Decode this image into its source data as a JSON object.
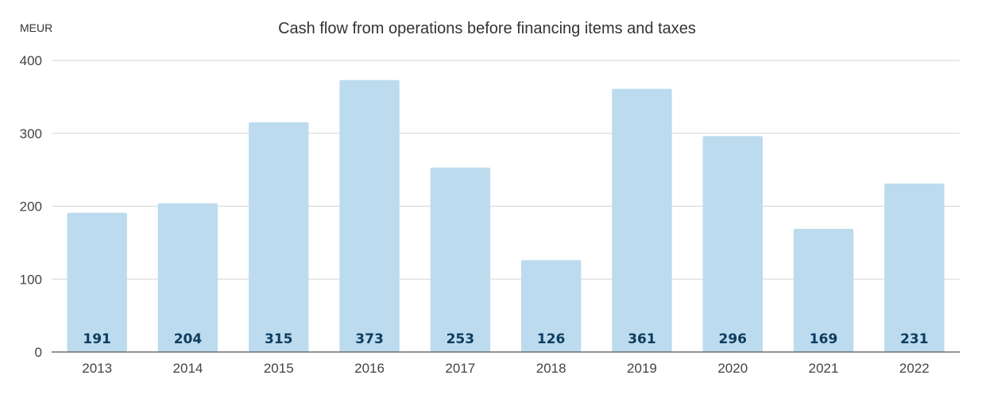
{
  "chart_data": {
    "type": "bar",
    "title": "Cash flow from operations before financing items and taxes",
    "unit": "MEUR",
    "xlabel": "",
    "ylabel": "",
    "categories": [
      "2013",
      "2014",
      "2015",
      "2016",
      "2017",
      "2018",
      "2019",
      "2020",
      "2021",
      "2022"
    ],
    "values": [
      191,
      204,
      315,
      373,
      253,
      126,
      361,
      296,
      169,
      231
    ],
    "ylim": [
      0,
      400
    ],
    "yticks": [
      0,
      100,
      200,
      300,
      400
    ],
    "grid": true,
    "legend": "none",
    "bar_color": "#bcdbee",
    "label_color": "#0d3c5e"
  }
}
